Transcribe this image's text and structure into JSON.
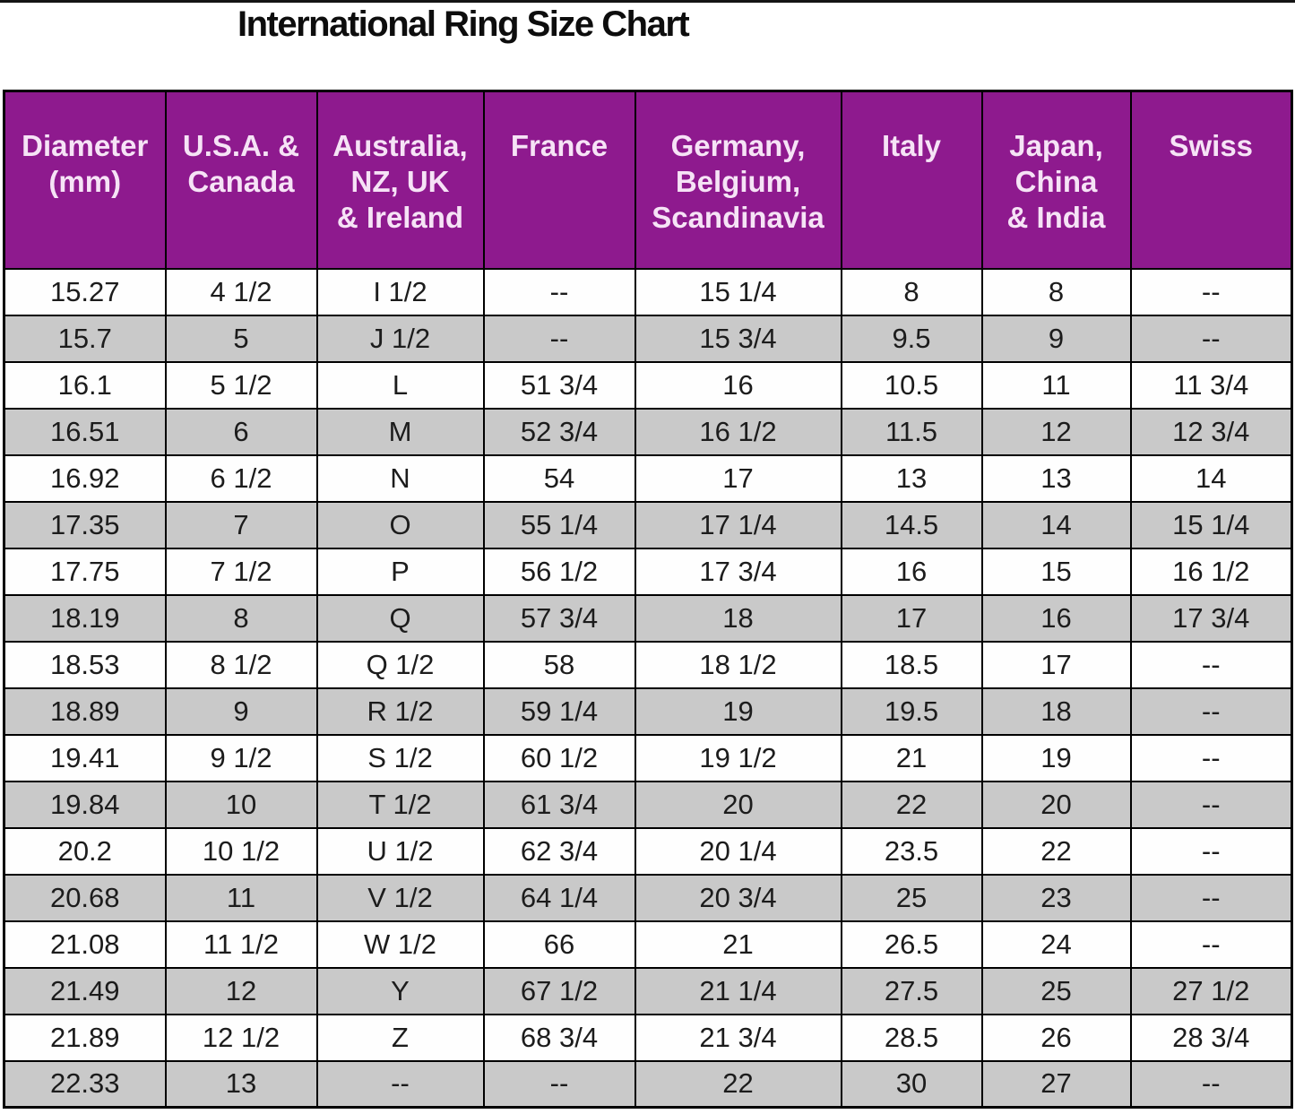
{
  "title": "International Ring Size Chart",
  "colors": {
    "header_bg": "#8E1A8E",
    "header_text": "#F6E3F6",
    "row_stripe": "#C9C9C9",
    "row_plain": "#FEFEFE",
    "border": "#000000"
  },
  "chart_data": {
    "type": "table",
    "title": "International Ring Size Chart",
    "columns": [
      "Diameter (mm)",
      "U.S.A. & Canada",
      "Australia, NZ, UK & Ireland",
      "France",
      "Germany, Belgium, Scandinavia",
      "Italy",
      "Japan, China & India",
      "Swiss"
    ],
    "header_lines": [
      "Diameter\n(mm)",
      "U.S.A. &\nCanada",
      "Australia,\nNZ, UK\n& Ireland",
      "France",
      "Germany,\nBelgium,\nScandinavia",
      "Italy",
      "Japan,\nChina\n& India",
      "Swiss"
    ],
    "rows": [
      [
        "15.27",
        "4 1/2",
        "I 1/2",
        "--",
        "15 1/4",
        "8",
        "8",
        "--"
      ],
      [
        "15.7",
        "5",
        "J 1/2",
        "--",
        "15 3/4",
        "9.5",
        "9",
        "--"
      ],
      [
        "16.1",
        "5 1/2",
        "L",
        "51 3/4",
        "16",
        "10.5",
        "11",
        "11 3/4"
      ],
      [
        "16.51",
        "6",
        "M",
        "52 3/4",
        "16 1/2",
        "11.5",
        "12",
        "12 3/4"
      ],
      [
        "16.92",
        "6 1/2",
        "N",
        "54",
        "17",
        "13",
        "13",
        "14"
      ],
      [
        "17.35",
        "7",
        "O",
        "55 1/4",
        "17 1/4",
        "14.5",
        "14",
        "15 1/4"
      ],
      [
        "17.75",
        "7 1/2",
        "P",
        "56 1/2",
        "17 3/4",
        "16",
        "15",
        "16 1/2"
      ],
      [
        "18.19",
        "8",
        "Q",
        "57 3/4",
        "18",
        "17",
        "16",
        "17 3/4"
      ],
      [
        "18.53",
        "8 1/2",
        "Q 1/2",
        "58",
        "18 1/2",
        "18.5",
        "17",
        "--"
      ],
      [
        "18.89",
        "9",
        "R 1/2",
        "59 1/4",
        "19",
        "19.5",
        "18",
        "--"
      ],
      [
        "19.41",
        "9 1/2",
        "S 1/2",
        "60 1/2",
        "19 1/2",
        "21",
        "19",
        "--"
      ],
      [
        "19.84",
        "10",
        "T 1/2",
        "61 3/4",
        "20",
        "22",
        "20",
        "--"
      ],
      [
        "20.2",
        "10 1/2",
        "U 1/2",
        "62 3/4",
        "20 1/4",
        "23.5",
        "22",
        "--"
      ],
      [
        "20.68",
        "11",
        "V 1/2",
        "64 1/4",
        "20 3/4",
        "25",
        "23",
        "--"
      ],
      [
        "21.08",
        "11 1/2",
        "W 1/2",
        "66",
        "21",
        "26.5",
        "24",
        "--"
      ],
      [
        "21.49",
        "12",
        "Y",
        "67 1/2",
        "21 1/4",
        "27.5",
        "25",
        "27 1/2"
      ],
      [
        "21.89",
        "12 1/2",
        "Z",
        "68 3/4",
        "21 3/4",
        "28.5",
        "26",
        "28 3/4"
      ],
      [
        "22.33",
        "13",
        "--",
        "--",
        "22",
        "30",
        "27",
        "--"
      ]
    ]
  }
}
